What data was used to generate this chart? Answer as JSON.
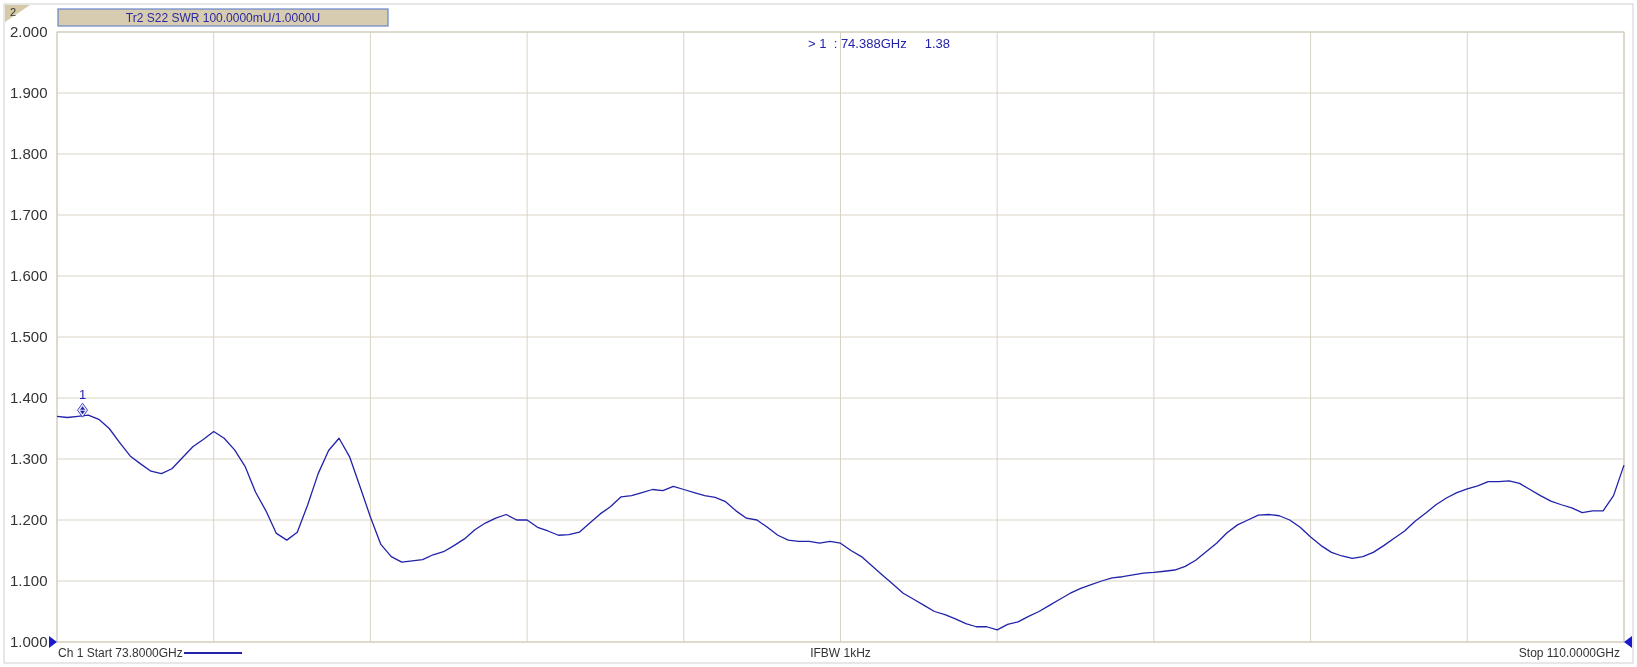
{
  "chart_data": {
    "type": "line",
    "title": "Tr2 S22 SWR 100.0000mU/1.0000U",
    "annotations": [
      "2",
      "> 1  : 74.388GHz     1.38",
      {
        "text": "1",
        "y": 1.38
      },
      "Ch 1 Start 73.8000GHz",
      "IFBW 1kHz",
      "Stop 110.0000GHz"
    ],
    "categories": [
      null,
      null,
      null,
      null,
      null,
      null,
      null,
      null,
      null,
      null,
      null,
      null,
      null,
      null,
      null,
      null,
      null,
      null,
      null,
      null,
      null,
      null,
      null,
      null,
      null,
      null,
      null,
      null,
      null,
      null,
      null,
      null,
      null,
      null,
      null,
      null,
      null,
      null,
      null,
      null,
      null,
      null,
      null,
      null,
      null,
      null,
      null,
      null,
      null,
      null,
      null,
      null,
      null,
      null,
      null,
      null,
      null,
      null,
      null,
      null,
      null,
      null,
      null,
      null,
      null,
      null,
      null,
      null,
      null,
      null,
      null,
      null,
      null,
      null,
      null,
      null,
      null,
      null,
      null,
      null,
      null,
      null,
      null,
      null,
      null,
      null,
      null,
      null,
      null,
      null,
      null,
      null,
      null,
      null,
      null,
      null,
      null,
      null,
      null,
      null,
      null,
      null,
      null,
      null,
      null,
      null,
      null,
      null,
      null,
      null,
      null,
      null,
      null,
      null,
      null,
      null,
      null,
      null,
      null,
      null,
      null,
      null,
      null,
      null,
      null,
      null,
      null,
      null,
      null,
      null,
      null,
      null,
      null,
      null,
      null,
      null,
      null,
      null,
      null,
      null,
      null,
      null,
      null,
      null,
      null,
      null,
      null,
      null,
      null,
      null,
      null
    ],
    "ylim": [
      1,
      2
    ],
    "yticks": [
      {
        "value": 1,
        "label": "1.000"
      },
      {
        "value": 1.1,
        "label": "1.100"
      },
      {
        "value": 1.2,
        "label": "1.200"
      },
      {
        "value": 1.3,
        "label": "1.300"
      },
      {
        "value": 1.4,
        "label": "1.400"
      },
      {
        "value": 1.5,
        "label": "1.500"
      },
      {
        "value": 1.6,
        "label": "1.600"
      },
      {
        "value": 1.7,
        "label": "1.700"
      },
      {
        "value": 1.8,
        "label": "1.800"
      },
      {
        "value": 1.9,
        "label": "1.900"
      },
      {
        "value": 2,
        "label": "2.000"
      }
    ],
    "grid": true,
    "tick_labels": "y",
    "marker": "none",
    "line_style": "solid",
    "series": [
      {
        "color": "#2222aa",
        "values": [
          1.37,
          1.368,
          1.37,
          1.372,
          1.365,
          1.35,
          1.327,
          1.305,
          1.292,
          1.28,
          1.276,
          1.284,
          1.302,
          1.32,
          1.332,
          1.345,
          1.334,
          1.315,
          1.288,
          1.246,
          1.215,
          1.178,
          1.167,
          1.18,
          1.225,
          1.276,
          1.314,
          1.334,
          1.304,
          1.255,
          1.205,
          1.16,
          1.14,
          1.131,
          1.133,
          1.135,
          1.143,
          1.148,
          1.158,
          1.169,
          1.184,
          1.195,
          1.203,
          1.209,
          1.2,
          1.2,
          1.188,
          1.182,
          1.175,
          1.176,
          1.18,
          1.195,
          1.21,
          1.222,
          1.238,
          1.24,
          1.245,
          1.25,
          1.248,
          1.255,
          1.25,
          1.245,
          1.24,
          1.237,
          1.23,
          1.215,
          1.203,
          1.2,
          1.188,
          1.175,
          1.167,
          1.165,
          1.165,
          1.162,
          1.165,
          1.162,
          1.15,
          1.14,
          1.125,
          1.11,
          1.095,
          1.08,
          1.07,
          1.06,
          1.05,
          1.045,
          1.038,
          1.03,
          1.025,
          1.025,
          1.02,
          1.029,
          1.033,
          1.042,
          1.05,
          1.06,
          1.07,
          1.08,
          1.088,
          1.094,
          1.1,
          1.105,
          1.107,
          1.11,
          1.113,
          1.114,
          1.116,
          1.118,
          1.124,
          1.134,
          1.148,
          1.162,
          1.179,
          1.192,
          1.2,
          1.208,
          1.209,
          1.207,
          1.2,
          1.188,
          1.172,
          1.158,
          1.147,
          1.141,
          1.137,
          1.14,
          1.147,
          1.158,
          1.17,
          1.182,
          1.198,
          1.211,
          1.225,
          1.236,
          1.245,
          1.251,
          1.256,
          1.263,
          1.263,
          1.264,
          1.26,
          1.25,
          1.24,
          1.231,
          1.225,
          1.22,
          1.212,
          1.215,
          1.215,
          1.24,
          1.29
        ]
      }
    ]
  }
}
